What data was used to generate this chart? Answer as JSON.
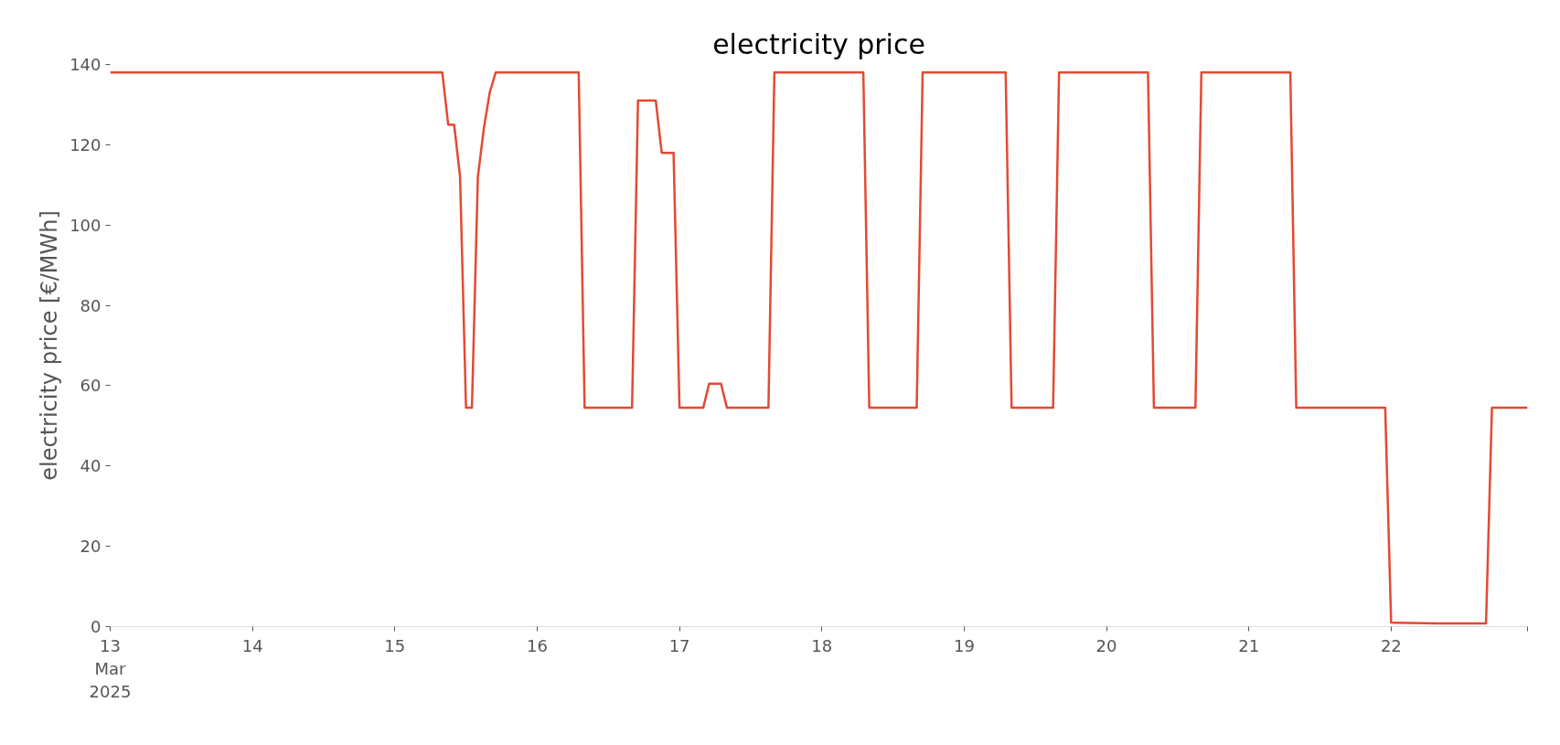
{
  "chart_data": {
    "type": "line",
    "title": "electricity price",
    "ylabel": "electricity price [€/MWh]",
    "x": [
      "2025-03-13T00:00",
      "2025-03-15T08:00",
      "2025-03-15T09:00",
      "2025-03-15T10:00",
      "2025-03-15T11:00",
      "2025-03-15T12:00",
      "2025-03-15T13:00",
      "2025-03-15T14:00",
      "2025-03-15T15:00",
      "2025-03-15T16:00",
      "2025-03-15T17:00",
      "2025-03-16T07:00",
      "2025-03-16T08:00",
      "2025-03-16T16:00",
      "2025-03-16T17:00",
      "2025-03-16T20:00",
      "2025-03-16T21:00",
      "2025-03-16T23:00",
      "2025-03-17T00:00",
      "2025-03-17T04:00",
      "2025-03-17T05:00",
      "2025-03-17T07:00",
      "2025-03-17T08:00",
      "2025-03-17T15:00",
      "2025-03-17T16:00",
      "2025-03-18T07:00",
      "2025-03-18T08:00",
      "2025-03-18T16:00",
      "2025-03-18T17:00",
      "2025-03-19T07:00",
      "2025-03-19T08:00",
      "2025-03-19T15:00",
      "2025-03-19T16:00",
      "2025-03-20T07:00",
      "2025-03-20T08:00",
      "2025-03-20T15:00",
      "2025-03-20T16:00",
      "2025-03-21T07:00",
      "2025-03-21T08:00",
      "2025-03-21T23:00",
      "2025-03-22T00:00",
      "2025-03-22T08:00",
      "2025-03-22T16:00",
      "2025-03-22T17:00",
      "2025-03-22T23:00"
    ],
    "series": [
      {
        "color": "#e24a33",
        "values": [
          138,
          138,
          125,
          125,
          112,
          54.5,
          54.5,
          112,
          124,
          133,
          138,
          138,
          54.5,
          54.5,
          131,
          131,
          118,
          118,
          54.5,
          54.5,
          60.5,
          60.5,
          54.5,
          54.5,
          138,
          138,
          54.5,
          54.5,
          138,
          138,
          54.5,
          54.5,
          138,
          138,
          54.5,
          54.5,
          138,
          138,
          54.5,
          54.5,
          1,
          0.8,
          0.8,
          54.5,
          54.5
        ]
      }
    ],
    "xticks": [
      {
        "value": "2025-03-13",
        "label": "13\nMar\n2025"
      },
      {
        "value": "2025-03-14",
        "label": "14"
      },
      {
        "value": "2025-03-15",
        "label": "15"
      },
      {
        "value": "2025-03-16",
        "label": "16"
      },
      {
        "value": "2025-03-17",
        "label": "17"
      },
      {
        "value": "2025-03-18",
        "label": "18"
      },
      {
        "value": "2025-03-19",
        "label": "19"
      },
      {
        "value": "2025-03-20",
        "label": "20"
      },
      {
        "value": "2025-03-21",
        "label": "21"
      },
      {
        "value": "2025-03-22",
        "label": "22"
      },
      {
        "value": "2025-03-22T23:00",
        "label": null
      }
    ],
    "xlim": [
      "2025-03-13T00:00",
      "2025-03-22T23:00"
    ],
    "ylim": [
      0,
      140
    ],
    "yticks": [
      0,
      20,
      40,
      60,
      80,
      100,
      120,
      140
    ],
    "grid": false,
    "line_style": "solid",
    "marker": "none"
  }
}
